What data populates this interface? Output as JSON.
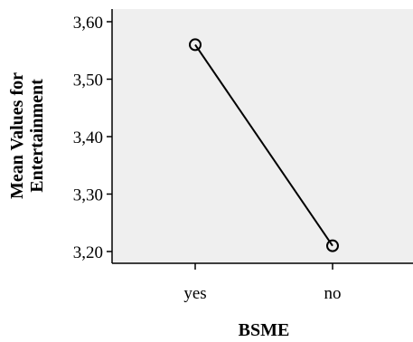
{
  "chart_data": {
    "type": "line",
    "categories": [
      "yes",
      "no"
    ],
    "series": [
      {
        "values": [
          3.56,
          3.21
        ]
      }
    ],
    "ylim": [
      3.2,
      3.6
    ],
    "yticks": [
      "3,20",
      "3,30",
      "3,40",
      "3,50",
      "3,60"
    ],
    "ytick_values": [
      3.2,
      3.3,
      3.4,
      3.5,
      3.6
    ],
    "xlabel": "BSME",
    "ylabel_lines": [
      "Mean Values for",
      "Entertainment"
    ],
    "grid": false,
    "legend": "none",
    "marker": "open-circle",
    "colors": {
      "plot_background": "#efefef",
      "line": "#000000",
      "axis": "#000000"
    }
  }
}
